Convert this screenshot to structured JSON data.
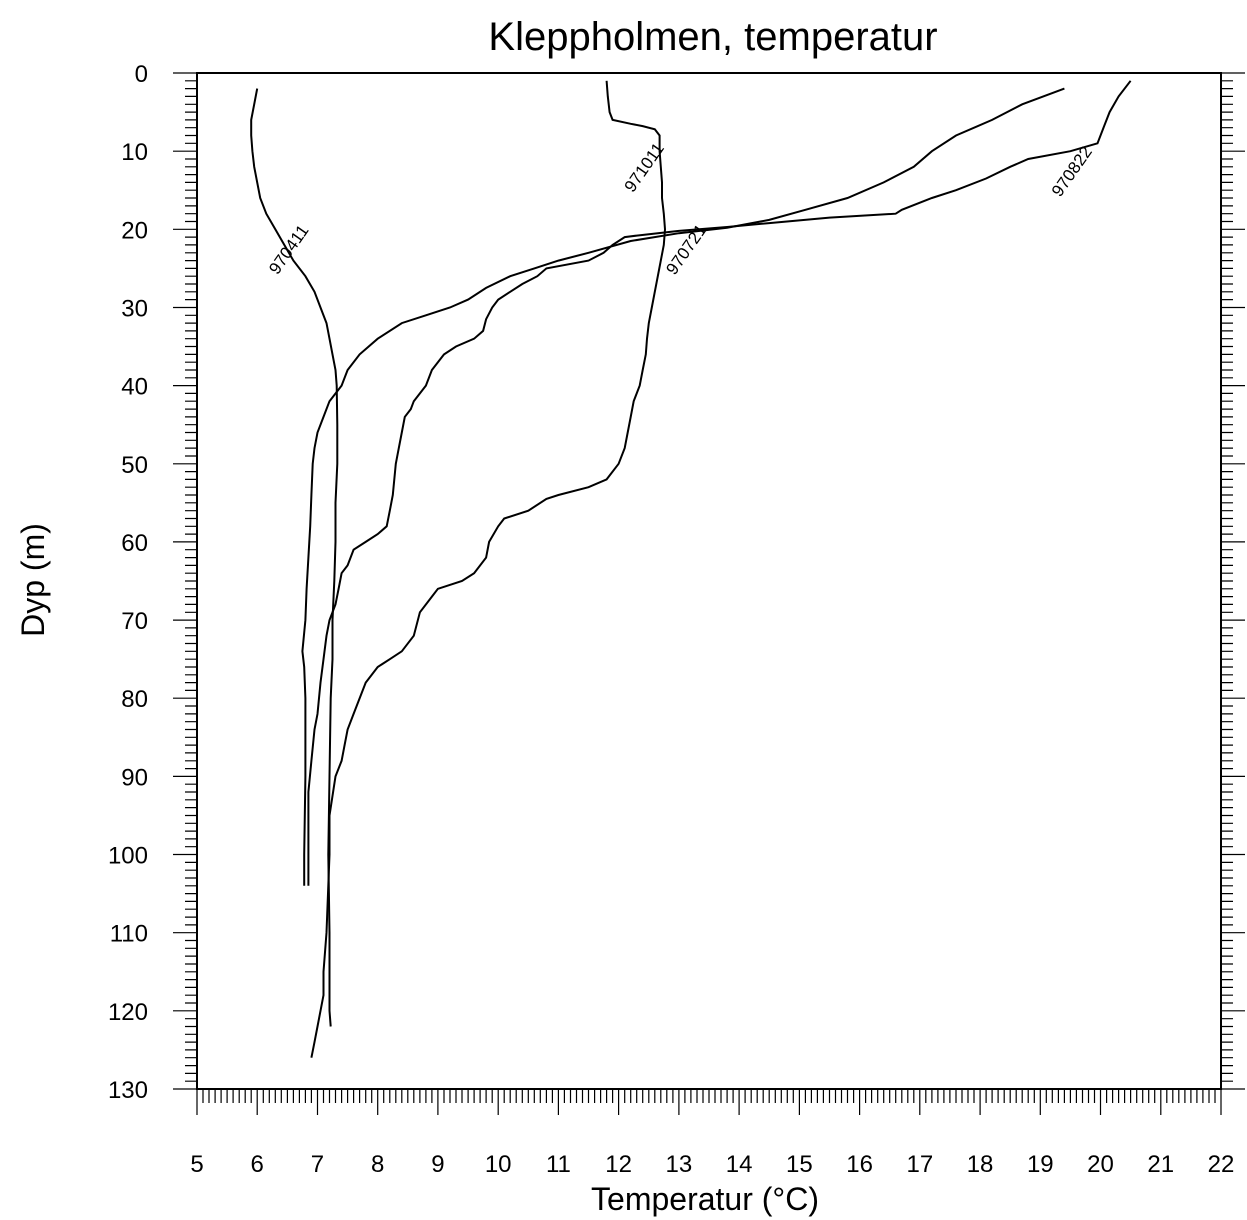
{
  "chart_data": {
    "type": "line",
    "title": "Kleppholmen, temperatur",
    "xlabel": "Temperatur (°C)",
    "ylabel": "Dyp (m)",
    "xlim": [
      5,
      22
    ],
    "ylim": [
      0,
      130
    ],
    "y_inverted": true,
    "x_ticks": [
      5,
      6,
      7,
      8,
      9,
      10,
      11,
      12,
      13,
      14,
      15,
      16,
      17,
      18,
      19,
      20,
      21,
      22
    ],
    "y_ticks": [
      0,
      10,
      20,
      30,
      40,
      50,
      60,
      70,
      80,
      90,
      100,
      110,
      120,
      130
    ],
    "grid": false,
    "series": [
      {
        "name": "970411",
        "points": [
          [
            6.0,
            2
          ],
          [
            5.95,
            4
          ],
          [
            5.9,
            6
          ],
          [
            5.9,
            8
          ],
          [
            5.92,
            10
          ],
          [
            5.95,
            12
          ],
          [
            6.0,
            14
          ],
          [
            6.05,
            16
          ],
          [
            6.15,
            18
          ],
          [
            6.3,
            20
          ],
          [
            6.45,
            22
          ],
          [
            6.6,
            24
          ],
          [
            6.8,
            26
          ],
          [
            6.95,
            28
          ],
          [
            7.05,
            30
          ],
          [
            7.15,
            32
          ],
          [
            7.2,
            34
          ],
          [
            7.25,
            36
          ],
          [
            7.3,
            38
          ],
          [
            7.32,
            40
          ],
          [
            7.33,
            45
          ],
          [
            7.33,
            50
          ],
          [
            7.3,
            55
          ],
          [
            7.3,
            60
          ],
          [
            7.28,
            65
          ],
          [
            7.25,
            70
          ],
          [
            7.25,
            75
          ],
          [
            7.22,
            80
          ],
          [
            7.2,
            90
          ],
          [
            7.18,
            100
          ],
          [
            7.2,
            110
          ],
          [
            7.2,
            120
          ],
          [
            7.22,
            122
          ]
        ]
      },
      {
        "name": "971011",
        "points": [
          [
            11.8,
            1
          ],
          [
            11.82,
            3
          ],
          [
            11.85,
            5
          ],
          [
            11.9,
            6
          ],
          [
            12.2,
            6.5
          ],
          [
            12.4,
            6.8
          ],
          [
            12.6,
            7.2
          ],
          [
            12.68,
            8
          ],
          [
            12.68,
            10
          ],
          [
            12.7,
            12
          ],
          [
            12.72,
            14
          ],
          [
            12.72,
            16
          ],
          [
            12.75,
            18
          ],
          [
            12.77,
            20
          ],
          [
            12.75,
            22
          ],
          [
            12.7,
            24
          ],
          [
            12.65,
            26
          ],
          [
            12.6,
            28
          ],
          [
            12.55,
            30
          ],
          [
            12.5,
            32
          ],
          [
            12.47,
            34
          ],
          [
            12.45,
            36
          ],
          [
            12.4,
            38
          ],
          [
            12.35,
            40
          ],
          [
            12.25,
            42
          ],
          [
            12.2,
            44
          ],
          [
            12.15,
            46
          ],
          [
            12.1,
            48
          ],
          [
            12.0,
            50
          ],
          [
            11.8,
            52
          ],
          [
            11.5,
            53
          ],
          [
            11.0,
            54
          ],
          [
            10.8,
            54.5
          ],
          [
            10.5,
            56
          ],
          [
            10.1,
            57
          ],
          [
            10.0,
            58
          ],
          [
            9.85,
            60
          ],
          [
            9.8,
            62
          ],
          [
            9.6,
            64
          ],
          [
            9.4,
            65
          ],
          [
            9.0,
            66
          ],
          [
            8.9,
            67
          ],
          [
            8.7,
            69
          ],
          [
            8.6,
            72
          ],
          [
            8.4,
            74
          ],
          [
            8.2,
            75
          ],
          [
            8.0,
            76
          ],
          [
            7.8,
            78
          ],
          [
            7.6,
            82
          ],
          [
            7.5,
            84
          ],
          [
            7.45,
            86
          ],
          [
            7.4,
            88
          ],
          [
            7.3,
            90
          ],
          [
            7.2,
            95
          ],
          [
            7.2,
            100
          ],
          [
            7.15,
            110
          ],
          [
            7.1,
            115
          ],
          [
            7.1,
            118
          ],
          [
            7.05,
            120
          ],
          [
            7.0,
            122
          ],
          [
            6.95,
            124
          ],
          [
            6.9,
            126
          ]
        ]
      },
      {
        "name": "970721",
        "points": [
          [
            19.4,
            2
          ],
          [
            18.7,
            4
          ],
          [
            18.2,
            6
          ],
          [
            17.6,
            8
          ],
          [
            17.2,
            10
          ],
          [
            16.9,
            12
          ],
          [
            16.4,
            14
          ],
          [
            15.8,
            16
          ],
          [
            15.1,
            17.5
          ],
          [
            14.5,
            18.8
          ],
          [
            13.8,
            19.8
          ],
          [
            13.0,
            20.5
          ],
          [
            12.2,
            21.5
          ],
          [
            11.5,
            23
          ],
          [
            11.0,
            24
          ],
          [
            10.6,
            25
          ],
          [
            10.2,
            26
          ],
          [
            9.8,
            27.5
          ],
          [
            9.5,
            29
          ],
          [
            9.2,
            30
          ],
          [
            8.8,
            31
          ],
          [
            8.4,
            32
          ],
          [
            8.0,
            34
          ],
          [
            7.7,
            36
          ],
          [
            7.5,
            38
          ],
          [
            7.4,
            40
          ],
          [
            7.2,
            42
          ],
          [
            7.1,
            44
          ],
          [
            7.0,
            46
          ],
          [
            6.95,
            48
          ],
          [
            6.92,
            50
          ],
          [
            6.9,
            54
          ],
          [
            6.88,
            58
          ],
          [
            6.85,
            62
          ],
          [
            6.82,
            66
          ],
          [
            6.8,
            70
          ],
          [
            6.75,
            74
          ],
          [
            6.78,
            76
          ],
          [
            6.8,
            80
          ],
          [
            6.8,
            90
          ],
          [
            6.78,
            100
          ],
          [
            6.78,
            104
          ]
        ]
      },
      {
        "name": "970822",
        "points": [
          [
            20.5,
            1
          ],
          [
            20.3,
            3
          ],
          [
            20.15,
            5
          ],
          [
            20.05,
            7
          ],
          [
            19.95,
            9
          ],
          [
            19.5,
            10
          ],
          [
            18.8,
            11
          ],
          [
            18.5,
            12
          ],
          [
            18.1,
            13.5
          ],
          [
            17.6,
            15
          ],
          [
            17.2,
            16
          ],
          [
            16.7,
            17.5
          ],
          [
            16.6,
            18
          ],
          [
            15.5,
            18.5
          ],
          [
            14.5,
            19.2
          ],
          [
            13.8,
            19.7
          ],
          [
            13.0,
            20.2
          ],
          [
            12.3,
            20.8
          ],
          [
            12.1,
            21
          ],
          [
            11.9,
            22
          ],
          [
            11.75,
            23
          ],
          [
            11.5,
            24
          ],
          [
            10.8,
            25
          ],
          [
            10.65,
            26
          ],
          [
            10.4,
            27
          ],
          [
            10.2,
            28
          ],
          [
            10.0,
            29
          ],
          [
            9.9,
            30
          ],
          [
            9.8,
            31.5
          ],
          [
            9.75,
            33
          ],
          [
            9.6,
            34
          ],
          [
            9.3,
            35
          ],
          [
            9.1,
            36
          ],
          [
            9.0,
            37
          ],
          [
            8.9,
            38
          ],
          [
            8.8,
            40
          ],
          [
            8.7,
            41
          ],
          [
            8.6,
            42
          ],
          [
            8.55,
            43
          ],
          [
            8.45,
            44
          ],
          [
            8.4,
            46
          ],
          [
            8.35,
            48
          ],
          [
            8.3,
            50
          ],
          [
            8.25,
            54
          ],
          [
            8.2,
            56
          ],
          [
            8.15,
            58
          ],
          [
            8.0,
            59
          ],
          [
            7.8,
            60
          ],
          [
            7.6,
            61
          ],
          [
            7.5,
            63
          ],
          [
            7.4,
            64
          ],
          [
            7.35,
            66
          ],
          [
            7.3,
            68
          ],
          [
            7.2,
            70
          ],
          [
            7.15,
            72
          ],
          [
            7.1,
            75
          ],
          [
            7.05,
            78
          ],
          [
            7.0,
            82
          ],
          [
            6.95,
            84
          ],
          [
            6.9,
            88
          ],
          [
            6.85,
            92
          ],
          [
            6.85,
            96
          ],
          [
            6.85,
            100
          ],
          [
            6.85,
            104
          ]
        ]
      }
    ],
    "series_labels": [
      {
        "text": "970411",
        "x": 6.6,
        "y": 23,
        "angle": -55
      },
      {
        "text": "971011",
        "x": 12.5,
        "y": 12.5,
        "angle": -55
      },
      {
        "text": "970721",
        "x": 13.2,
        "y": 23,
        "angle": -55
      },
      {
        "text": "970822",
        "x": 19.6,
        "y": 13,
        "angle": -55
      }
    ]
  }
}
